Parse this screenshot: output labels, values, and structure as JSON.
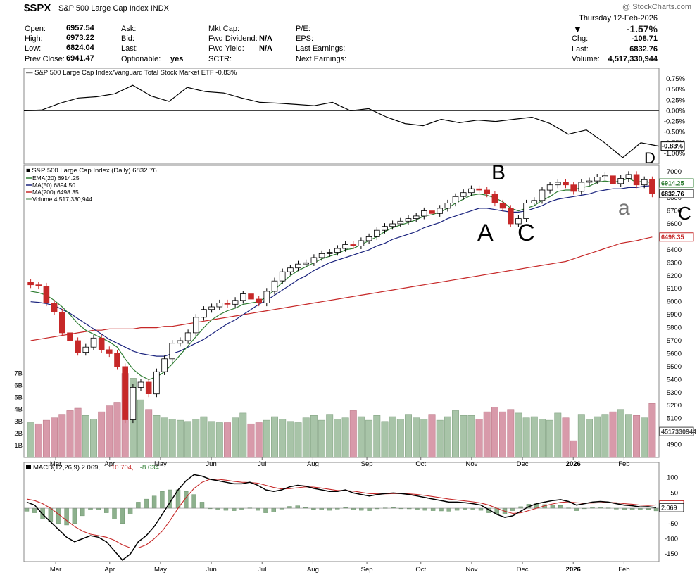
{
  "header": {
    "symbol": "$SPX",
    "name": "S&P 500 Large Cap Index",
    "exchange": "INDX",
    "watermark": "@ StockCharts.com",
    "date": "Thursday  12-Feb-2026",
    "pct_change": "-1.57%",
    "open_label": "Open:",
    "open": "6957.54",
    "high_label": "High:",
    "high": "6973.22",
    "low_label": "Low:",
    "low": "6824.04",
    "prev_label": "Prev Close:",
    "prev": "6941.47",
    "ask_label": "Ask:",
    "bid_label": "Bid:",
    "last_label": "Last:",
    "optionable_label": "Optionable:",
    "optionable": "yes",
    "mktcap_label": "Mkt Cap:",
    "fwddiv_label": "Fwd Dividend:",
    "fwddiv": "N/A",
    "fwdyield_label": "Fwd Yield:",
    "fwdyield": "N/A",
    "sctr_label": "SCTR:",
    "pe_label": "P/E:",
    "eps_label": "EPS:",
    "lastearn_label": "Last Earnings:",
    "nextearn_label": "Next Earnings:",
    "chg_label": "Chg:",
    "chg": "-108.71",
    "last2_label": "Last:",
    "last": "6832.76",
    "volume_label": "Volume:",
    "volume": "4,517,330,944"
  },
  "chart_data": [
    {
      "type": "line",
      "title": "S&P 500 Large Cap Index/Vanguard Total Stock Market ETF -0.83%",
      "ylim": [
        -1.25,
        1.0
      ],
      "yticks": [
        "0.75%",
        "0.50%",
        "0.25%",
        "0.00%",
        "-0.25%",
        "-0.50%",
        "-0.75%",
        "-1.00%"
      ],
      "last_label": "-0.83%",
      "values": [
        0.0,
        0.02,
        0.18,
        0.3,
        0.33,
        0.4,
        0.6,
        0.35,
        0.22,
        0.55,
        0.45,
        0.42,
        0.3,
        0.2,
        0.18,
        0.15,
        0.12,
        0.2,
        0.0,
        0.05,
        -0.15,
        -0.3,
        -0.35,
        -0.2,
        -0.28,
        -0.22,
        -0.25,
        -0.2,
        -0.15,
        -0.3,
        -0.55,
        -0.45,
        -0.75,
        -1.1,
        -0.75,
        -0.83
      ]
    },
    {
      "type": "candlestick",
      "title": "S&P 500 Large Cap Index (Daily) 6832.76",
      "legend": [
        {
          "name": "EMA(20) 6914.25",
          "color": "#2e7d32"
        },
        {
          "name": "MA(50) 6894.50",
          "color": "#1a237e"
        },
        {
          "name": "MA(200) 6498.35",
          "color": "#c62828"
        },
        {
          "name": "Volume 4,517,330,944",
          "color": "#7fa87f"
        }
      ],
      "ylim": [
        4800,
        7050
      ],
      "yticks": [
        7000,
        6900,
        6800,
        6700,
        6600,
        6500,
        6400,
        6300,
        6200,
        6100,
        6000,
        5900,
        5800,
        5700,
        5600,
        5500,
        5400,
        5300,
        5200,
        5100,
        5000,
        4900
      ],
      "volume_ticks": [
        "7B",
        "6B",
        "5B",
        "4B",
        "3B",
        "2B",
        "1B"
      ],
      "price_tags": [
        {
          "label": "6914.25",
          "value": 6914.25,
          "color": "#2e7d32"
        },
        {
          "label": "6832.76",
          "value": 6832.76,
          "color": "#000000"
        },
        {
          "label": "6498.35",
          "value": 6498.35,
          "color": "#c62828"
        },
        {
          "label": "4517330944",
          "value": 5000,
          "color": "#444444"
        }
      ],
      "close": [
        6130,
        6120,
        5990,
        5920,
        5760,
        5700,
        5610,
        5650,
        5720,
        5630,
        5600,
        5500,
        5090,
        5340,
        5380,
        5290,
        5460,
        5560,
        5680,
        5700,
        5760,
        5880,
        5940,
        5960,
        5990,
        5980,
        6010,
        6060,
        6020,
        5990,
        6080,
        6160,
        6230,
        6260,
        6290,
        6300,
        6340,
        6370,
        6380,
        6410,
        6440,
        6430,
        6470,
        6500,
        6550,
        6580,
        6600,
        6620,
        6640,
        6660,
        6700,
        6680,
        6720,
        6760,
        6810,
        6840,
        6870,
        6860,
        6830,
        6760,
        6720,
        6600,
        6640,
        6760,
        6780,
        6860,
        6900,
        6920,
        6900,
        6850,
        6920,
        6930,
        6960,
        6970,
        6910,
        6950,
        6980,
        6900,
        6940,
        6830
      ],
      "ema20": [
        6080,
        6070,
        6050,
        6010,
        5960,
        5900,
        5830,
        5780,
        5750,
        5720,
        5690,
        5650,
        5560,
        5480,
        5430,
        5400,
        5420,
        5460,
        5520,
        5590,
        5660,
        5730,
        5800,
        5860,
        5900,
        5930,
        5950,
        5980,
        5990,
        6000,
        6040,
        6090,
        6150,
        6200,
        6240,
        6270,
        6300,
        6330,
        6350,
        6370,
        6400,
        6410,
        6440,
        6470,
        6500,
        6540,
        6570,
        6590,
        6610,
        6630,
        6660,
        6670,
        6690,
        6720,
        6760,
        6790,
        6820,
        6830,
        6820,
        6800,
        6770,
        6720,
        6700,
        6720,
        6740,
        6780,
        6810,
        6850,
        6860,
        6860,
        6880,
        6890,
        6920,
        6930,
        6920,
        6930,
        6950,
        6920,
        6930,
        6914
      ],
      "ma50": [
        6000,
        5995,
        5985,
        5970,
        5940,
        5910,
        5870,
        5830,
        5790,
        5750,
        5710,
        5680,
        5650,
        5620,
        5600,
        5590,
        5580,
        5580,
        5600,
        5620,
        5650,
        5680,
        5710,
        5750,
        5790,
        5830,
        5860,
        5900,
        5940,
        5980,
        6010,
        6050,
        6090,
        6130,
        6170,
        6200,
        6240,
        6270,
        6300,
        6320,
        6340,
        6360,
        6380,
        6400,
        6430,
        6450,
        6480,
        6500,
        6520,
        6540,
        6570,
        6590,
        6610,
        6640,
        6660,
        6680,
        6700,
        6720,
        6720,
        6710,
        6700,
        6690,
        6690,
        6700,
        6720,
        6740,
        6770,
        6790,
        6800,
        6810,
        6820,
        6830,
        6850,
        6860,
        6870,
        6870,
        6880,
        6880,
        6890,
        6894
      ],
      "ma200": [
        5700,
        5710,
        5720,
        5730,
        5740,
        5750,
        5760,
        5770,
        5780,
        5780,
        5790,
        5790,
        5790,
        5790,
        5800,
        5800,
        5800,
        5810,
        5810,
        5820,
        5830,
        5840,
        5850,
        5860,
        5870,
        5880,
        5890,
        5900,
        5910,
        5920,
        5930,
        5940,
        5950,
        5960,
        5970,
        5980,
        5990,
        6000,
        6010,
        6020,
        6030,
        6040,
        6050,
        6060,
        6070,
        6080,
        6090,
        6100,
        6110,
        6120,
        6130,
        6140,
        6150,
        6160,
        6170,
        6180,
        6190,
        6200,
        6210,
        6220,
        6230,
        6240,
        6250,
        6260,
        6270,
        6280,
        6290,
        6300,
        6310,
        6330,
        6350,
        6370,
        6390,
        6410,
        6430,
        6450,
        6460,
        6470,
        6485,
        6498
      ],
      "volume": [
        2.9,
        2.8,
        3.1,
        3.3,
        3.6,
        3.9,
        4.1,
        3.5,
        3.2,
        3.8,
        4.3,
        4.6,
        7.0,
        6.6,
        4.8,
        4.0,
        3.5,
        3.3,
        3.2,
        3.1,
        3.0,
        3.2,
        3.4,
        3.0,
        2.9,
        2.9,
        3.3,
        3.7,
        2.8,
        2.9,
        3.1,
        3.4,
        3.2,
        3.0,
        2.9,
        3.3,
        3.5,
        3.1,
        3.6,
        3.2,
        3.3,
        3.9,
        3.4,
        3.1,
        3.5,
        3.0,
        3.4,
        3.2,
        3.6,
        3.3,
        3.2,
        3.6,
        3.1,
        3.4,
        3.9,
        3.5,
        3.5,
        3.2,
        3.8,
        4.2,
        3.8,
        4.0,
        3.7,
        3.3,
        3.4,
        3.2,
        3.1,
        3.7,
        3.3,
        1.4,
        3.6,
        3.2,
        3.4,
        3.6,
        3.8,
        4.0,
        3.6,
        3.5,
        3.3,
        4.5
      ]
    },
    {
      "type": "line",
      "title": "MACD(12,26,9) 2.069, 10.704, -8.634",
      "legend": [
        {
          "name": "MACD(12,26,9) 2.069,",
          "color": "#000000"
        },
        {
          "name": "10.704,",
          "color": "#c62828"
        },
        {
          "name": "-8.634",
          "color": "#2e7d32"
        }
      ],
      "ylim": [
        -175,
        150
      ],
      "yticks": [
        100,
        50,
        0,
        -50,
        -100,
        -150
      ],
      "price_tags": [
        {
          "label": "10.704",
          "value": 10.704,
          "color": "#c62828"
        },
        {
          "label": "2.069",
          "value": 2.069,
          "color": "#000000"
        }
      ],
      "macd": [
        20,
        10,
        -20,
        -45,
        -70,
        -95,
        -110,
        -100,
        -90,
        -95,
        -110,
        -140,
        -170,
        -150,
        -110,
        -90,
        -60,
        -20,
        20,
        60,
        90,
        110,
        105,
        95,
        90,
        85,
        80,
        80,
        85,
        75,
        60,
        55,
        60,
        70,
        75,
        72,
        65,
        60,
        55,
        55,
        60,
        50,
        45,
        40,
        45,
        48,
        50,
        48,
        45,
        40,
        35,
        30,
        25,
        20,
        20,
        18,
        15,
        10,
        -5,
        -20,
        -30,
        -25,
        -10,
        5,
        15,
        20,
        25,
        28,
        22,
        10,
        15,
        20,
        22,
        20,
        15,
        10,
        8,
        4,
        5,
        2
      ],
      "signal": [
        30,
        25,
        15,
        0,
        -20,
        -40,
        -60,
        -75,
        -85,
        -90,
        -95,
        -105,
        -120,
        -130,
        -130,
        -120,
        -100,
        -75,
        -40,
        0,
        35,
        65,
        85,
        95,
        95,
        92,
        88,
        85,
        84,
        82,
        75,
        68,
        63,
        64,
        67,
        70,
        69,
        66,
        62,
        58,
        58,
        56,
        52,
        48,
        47,
        47,
        48,
        48,
        47,
        45,
        42,
        38,
        34,
        30,
        27,
        24,
        21,
        17,
        10,
        0,
        -10,
        -17,
        -15,
        -8,
        0,
        8,
        14,
        19,
        21,
        18,
        16,
        17,
        18,
        19,
        18,
        15,
        13,
        10,
        9,
        10.7
      ]
    },
    {
      "type": "axis",
      "months": [
        "Mar",
        "Apr",
        "May",
        "Jun",
        "Jul",
        "Aug",
        "Sep",
        "Oct",
        "Nov",
        "Dec",
        "2026",
        "Feb"
      ],
      "month_positions": [
        0.05,
        0.135,
        0.215,
        0.295,
        0.375,
        0.455,
        0.54,
        0.625,
        0.705,
        0.785,
        0.865,
        0.945
      ]
    }
  ],
  "annotations": {
    "b": "B",
    "a": "A",
    "c": "C",
    "d": "D",
    "a2": "a",
    "c2": "C"
  }
}
